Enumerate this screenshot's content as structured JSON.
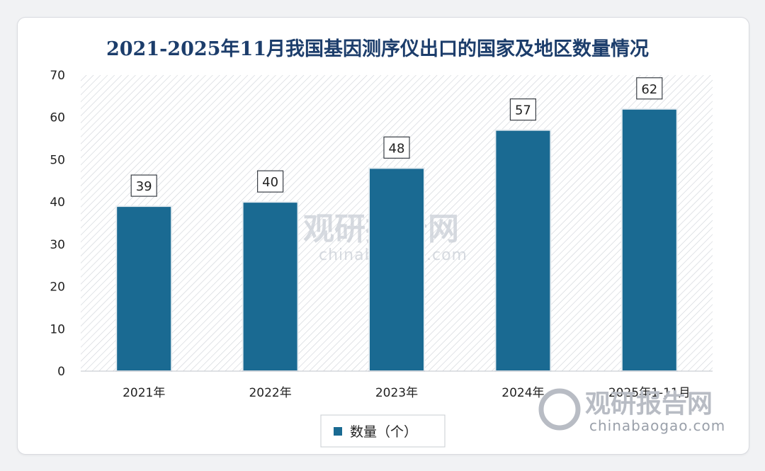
{
  "chart_data": {
    "type": "bar",
    "title": "2021-2025年11月我国基因测序仪出口的国家及地区数量情况",
    "categories": [
      "2021年",
      "2022年",
      "2023年",
      "2024年",
      "2025年1-11月"
    ],
    "series": [
      {
        "name": "数量（个）",
        "values": [
          39,
          40,
          48,
          57,
          62
        ]
      }
    ],
    "ylim": [
      0,
      70
    ],
    "yticks": [
      0,
      10,
      20,
      30,
      40,
      50,
      60,
      70
    ],
    "grid": false,
    "legend": "bottom",
    "colors": {
      "bar": "#1a6a92",
      "bar_edge": "#e8eef2",
      "hatch": "#c8ccd2"
    }
  },
  "watermark": {
    "center_text": "观研报告网",
    "center_url": "chinabaogao.com",
    "corner_text": "观研报告网",
    "corner_url": "chinabaogao.com"
  }
}
